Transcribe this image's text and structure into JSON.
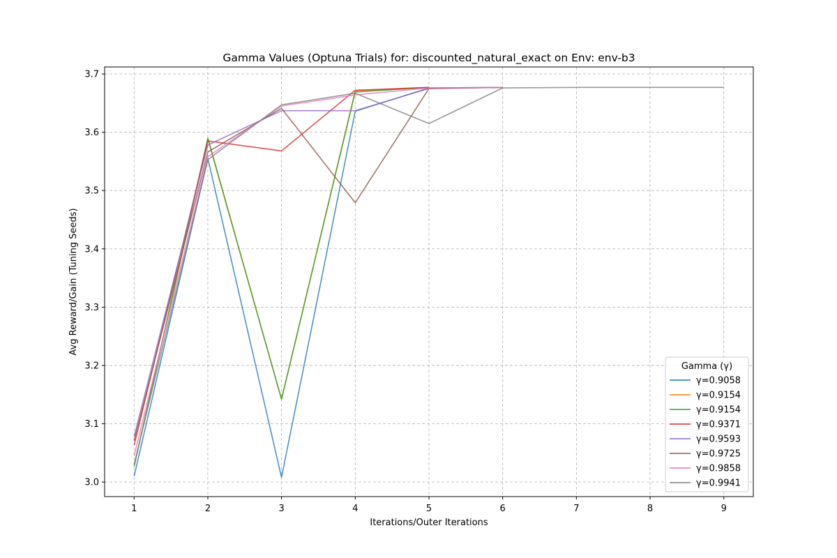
{
  "chart_data": {
    "type": "line",
    "title": "Gamma Values (Optuna Trials) for: discounted_natural_exact on Env: env-b3",
    "xlabel": "Iterations/Outer Iterations",
    "ylabel": "Avg Reward/Gain (Tuning Seeds)",
    "xlim": [
      0.6,
      9.4
    ],
    "ylim": [
      2.975,
      3.712
    ],
    "xticks": [
      1,
      2,
      3,
      4,
      5,
      6,
      7,
      8,
      9
    ],
    "yticks": [
      3.0,
      3.1,
      3.2,
      3.3,
      3.4,
      3.5,
      3.6,
      3.7
    ],
    "ytick_labels": [
      "3.0",
      "3.1",
      "3.2",
      "3.3",
      "3.4",
      "3.5",
      "3.6",
      "3.7"
    ],
    "grid": true,
    "legend": {
      "title": "Gamma (γ)",
      "placement": "lower-right"
    },
    "series": [
      {
        "name": "γ=0.9058",
        "color": "#1f77b4",
        "x": [
          1,
          2,
          3,
          4,
          5,
          6
        ],
        "y": [
          3.01,
          3.555,
          3.008,
          3.636,
          3.676,
          3.677
        ]
      },
      {
        "name": "γ=0.9154",
        "color": "#ff7f0e",
        "x": [
          1,
          2,
          3,
          4,
          5
        ],
        "y": [
          3.027,
          3.588,
          3.142,
          3.671,
          3.677
        ]
      },
      {
        "name": "γ=0.9154",
        "color": "#2ca02c",
        "x": [
          1,
          2,
          3,
          4,
          5
        ],
        "y": [
          3.027,
          3.59,
          3.142,
          3.669,
          3.677
        ]
      },
      {
        "name": "γ=0.9371",
        "color": "#d62728",
        "x": [
          1,
          2,
          3,
          4,
          5
        ],
        "y": [
          3.063,
          3.585,
          3.568,
          3.672,
          3.677
        ]
      },
      {
        "name": "γ=0.9593",
        "color": "#9467bd",
        "x": [
          1,
          2,
          3,
          4,
          5,
          6
        ],
        "y": [
          3.078,
          3.578,
          3.637,
          3.637,
          3.675,
          3.677
        ]
      },
      {
        "name": "γ=0.9725",
        "color": "#8c564b",
        "x": [
          1,
          2,
          3,
          4,
          5,
          6
        ],
        "y": [
          3.071,
          3.566,
          3.641,
          3.479,
          3.675,
          3.677
        ]
      },
      {
        "name": "γ=0.9858",
        "color": "#e377c2",
        "x": [
          1,
          2,
          3,
          4,
          5,
          6
        ],
        "y": [
          3.045,
          3.558,
          3.645,
          3.664,
          3.676,
          3.677
        ]
      },
      {
        "name": "γ=0.9941",
        "color": "#7f7f7f",
        "x": [
          1,
          2,
          3,
          4,
          5,
          6,
          7,
          8,
          9
        ],
        "y": [
          3.03,
          3.553,
          3.647,
          3.667,
          3.615,
          3.676,
          3.677,
          3.677,
          3.677
        ]
      }
    ]
  }
}
